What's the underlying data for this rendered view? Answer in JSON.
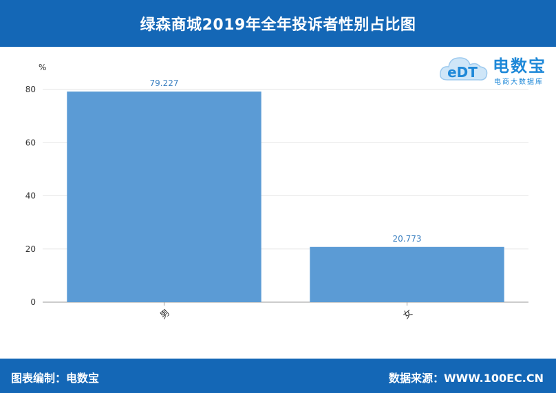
{
  "header": {
    "title": "绿森商城2019年全年投诉者性别占比图"
  },
  "footer": {
    "left_text": "图表编制：电数宝",
    "right_text": "数据来源：WWW.100EC.CN"
  },
  "logo": {
    "mark_text": "eDT",
    "name": "电数宝",
    "subtitle": "电商大数据库",
    "icon": "cloud-logo-icon"
  },
  "colors": {
    "banner": "#1467b6",
    "bar": "#5b9bd5",
    "label": "#3a7fc0",
    "logo": "#1e88d8"
  },
  "chart_data": {
    "type": "bar",
    "categories": [
      "男",
      "女"
    ],
    "values": [
      79.227,
      20.773
    ],
    "value_labels": [
      "79.227",
      "20.773"
    ],
    "ylabel": "%",
    "ylim": [
      0,
      80
    ],
    "yticks": [
      0,
      20,
      40,
      60,
      80
    ],
    "grid": true,
    "legend": "none"
  }
}
